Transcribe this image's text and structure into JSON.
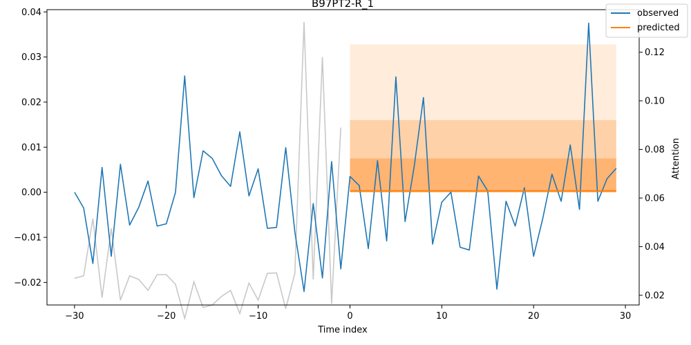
{
  "chart_data": {
    "type": "line",
    "title": "B97PT2-R_1",
    "xlabel": "Time index",
    "ylabel": "",
    "y2label": "Attention",
    "xlim": [
      -33,
      31.5
    ],
    "ylim": [
      -0.025,
      0.0405
    ],
    "y2lim": [
      0.016,
      0.1375
    ],
    "xticks": [
      -30,
      -20,
      -10,
      0,
      10,
      20,
      30
    ],
    "xtick_labels": [
      "−30",
      "−20",
      "−10",
      "0",
      "10",
      "20",
      "30"
    ],
    "yticks": [
      -0.02,
      -0.01,
      0.0,
      0.01,
      0.02,
      0.03,
      0.04
    ],
    "ytick_labels": [
      "−0.02",
      "−0.01",
      "0.00",
      "0.01",
      "0.02",
      "0.03",
      "0.04"
    ],
    "y2ticks": [
      0.02,
      0.04,
      0.06,
      0.08,
      0.1,
      0.12
    ],
    "y2tick_labels": [
      "0.02",
      "0.04",
      "0.06",
      "0.08",
      "0.10",
      "0.12"
    ],
    "grid": false,
    "legend_position": "top-right",
    "series": [
      {
        "name": "observed",
        "color": "#1f77b4",
        "x": [
          -30,
          -29,
          -28,
          -27,
          -26,
          -25,
          -24,
          -23,
          -22,
          -21,
          -20,
          -19,
          -18,
          -17,
          -16,
          -15,
          -14,
          -13,
          -12,
          -11,
          -10,
          -9,
          -8,
          -7,
          -6,
          -5,
          -4,
          -3,
          -2,
          -1,
          0,
          1,
          2,
          3,
          4,
          5,
          6,
          7,
          8,
          9,
          10,
          11,
          12,
          13,
          14,
          15,
          16,
          17,
          18,
          19,
          20,
          21,
          22,
          23,
          24,
          25,
          26,
          27,
          28,
          29
        ],
        "y": [
          0.0,
          -0.0035,
          -0.0158,
          0.0055,
          -0.0142,
          0.0062,
          -0.0073,
          -0.0033,
          0.0025,
          -0.0075,
          -0.007,
          0.0,
          0.0258,
          -0.0012,
          0.0092,
          0.0075,
          0.0037,
          0.0013,
          0.0134,
          -0.0008,
          0.0052,
          -0.008,
          -0.0078,
          0.0099,
          -0.0088,
          -0.022,
          -0.0025,
          -0.019,
          0.0068,
          -0.017,
          0.0035,
          0.0015,
          -0.0125,
          0.007,
          -0.0108,
          0.0256,
          -0.0065,
          0.0058,
          0.021,
          -0.0115,
          -0.0022,
          0.0,
          -0.0122,
          -0.0128,
          0.0036,
          0.0003,
          -0.0215,
          -0.002,
          -0.0075,
          0.001,
          -0.0142,
          -0.0058,
          0.004,
          -0.002,
          0.0105,
          -0.0038,
          0.0375,
          -0.002,
          0.003,
          0.0053
        ]
      },
      {
        "name": "predicted",
        "color": "#ff7f0e",
        "x": [
          0,
          29
        ],
        "y": [
          0.0003,
          0.0003
        ]
      }
    ],
    "attention": {
      "color": "#c8c8c8",
      "x": [
        -30,
        -29,
        -28,
        -27,
        -26,
        -25,
        -24,
        -23,
        -22,
        -21,
        -20,
        -19,
        -18,
        -17,
        -16,
        -15,
        -14,
        -13,
        -12,
        -11,
        -10,
        -9,
        -8,
        -7,
        -6,
        -5,
        -4,
        -3,
        -2,
        -1
      ],
      "y": [
        0.027,
        0.028,
        0.0515,
        0.019,
        0.0475,
        0.018,
        0.028,
        0.0265,
        0.022,
        0.0285,
        0.0285,
        0.0245,
        0.0105,
        0.0255,
        0.015,
        0.016,
        0.0195,
        0.022,
        0.0125,
        0.025,
        0.018,
        0.029,
        0.0292,
        0.0145,
        0.029,
        0.1325,
        0.0265,
        0.118,
        0.0165,
        0.089
      ]
    },
    "prediction_intervals": {
      "color": "#ff7f0e",
      "x_start": 0,
      "x_end": 29,
      "bands": [
        {
          "low": 0.0,
          "high": 0.0328,
          "opacity": 0.15
        },
        {
          "low": 0.0,
          "high": 0.016,
          "opacity": 0.25
        },
        {
          "low": 0.0,
          "high": 0.0075,
          "opacity": 0.35
        }
      ]
    }
  }
}
